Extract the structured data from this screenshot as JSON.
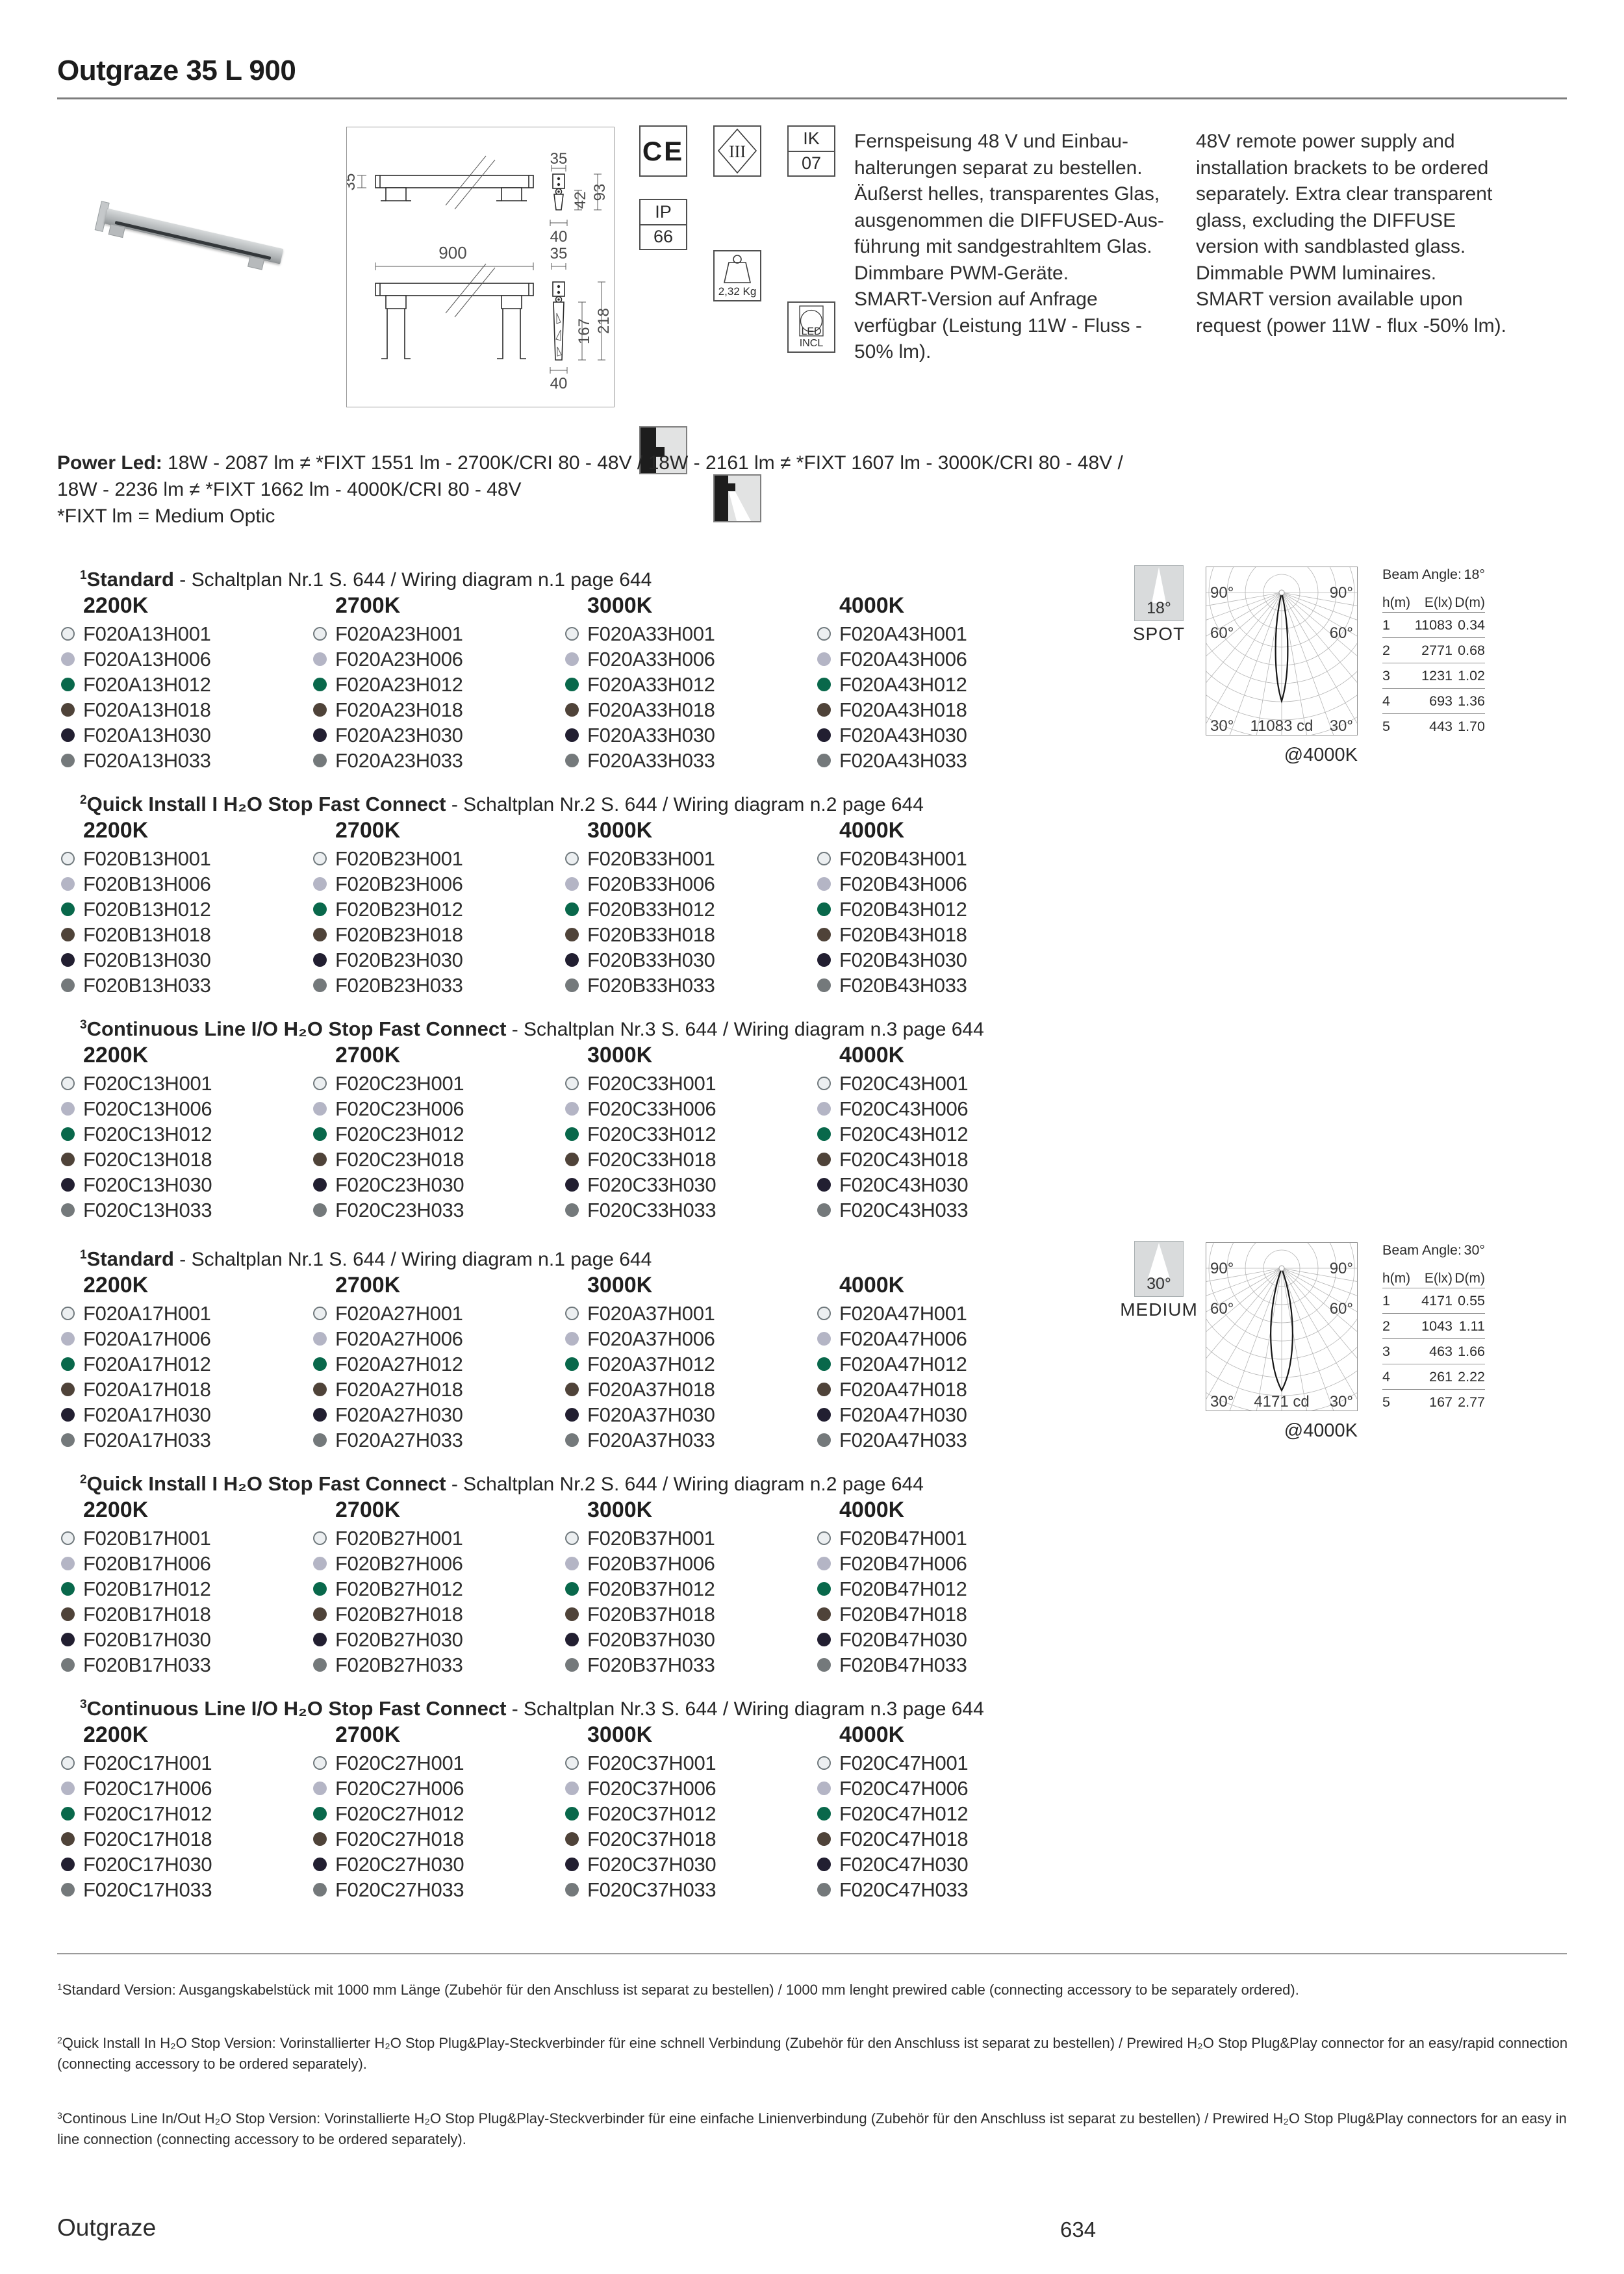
{
  "title": "Outgraze 35 L 900",
  "intro": {
    "de": [
      "Fernspeisung 48 V und Einbau-",
      "halterungen separat zu bestellen.",
      "Äußerst helles, transparentes Glas,",
      "ausgenommen die DIFFUSED-Aus-",
      "führung mit sandgestrahltem Glas.",
      "Dimmbare PWM-Geräte.",
      "SMART-Version auf Anfrage",
      "verfügbar (Leistung 11W - Fluss -",
      "50% lm)."
    ],
    "en": [
      "48V remote power supply and",
      "installation brackets to be ordered",
      "separately. Extra clear transparent",
      "glass, excluding the DIFFUSE",
      "version with sandblasted glass.",
      "Dimmable PWM luminaires.",
      "SMART version available upon",
      "request (power 11W - flux -50% lm)."
    ]
  },
  "badges": {
    "ce": "CE",
    "insulation_class": "III",
    "ik_label": "IK",
    "ik_value": "07",
    "ip_label": "IP",
    "ip_value": "66",
    "weight": "2,32 Kg",
    "led": "LED INCL"
  },
  "drawing": {
    "dims": {
      "side_height": "35",
      "end_width_top": "35",
      "bracket_height": "42",
      "total_depth_top": "93",
      "base_width_top": "40",
      "length": "900",
      "end_width_bottom": "35",
      "stem_height": "167",
      "total_height_bottom": "218",
      "base_width_bottom": "40"
    }
  },
  "power_led": {
    "label": "Power Led:",
    "line1": "18W - 2087 lm ≠ *FIXT 1551 lm - 2700K/CRI 80 - 48V    /    18W - 2161 lm ≠ *FIXT 1607 lm - 3000K/CRI 80 - 48V    /",
    "line2": "18W - 2236 lm ≠ *FIXT 1662 lm - 4000K/CRI 80 - 48V",
    "line3": "*FIXT lm = Medium Optic"
  },
  "finishes": [
    {
      "suffix": "H001",
      "color": "#eceff1",
      "border": "#6f787c"
    },
    {
      "suffix": "H006",
      "color": "#b4b5c5"
    },
    {
      "suffix": "H012",
      "color": "#09684b"
    },
    {
      "suffix": "H018",
      "color": "#4f4339"
    },
    {
      "suffix": "H030",
      "color": "#221f31"
    },
    {
      "suffix": "H033",
      "color": "#74797b"
    }
  ],
  "sections": [
    {
      "sup": "1",
      "name": "Standard",
      "rest": "- Schaltplan Nr.1 S. 644 / Wiring diagram n.1 page 644",
      "columns": [
        {
          "temp": "2200K",
          "codes": [
            "F020A13H001",
            "F020A13H006",
            "F020A13H012",
            "F020A13H018",
            "F020A13H030",
            "F020A13H033"
          ]
        },
        {
          "temp": "2700K",
          "codes": [
            "F020A23H001",
            "F020A23H006",
            "F020A23H012",
            "F020A23H018",
            "F020A23H030",
            "F020A23H033"
          ]
        },
        {
          "temp": "3000K",
          "codes": [
            "F020A33H001",
            "F020A33H006",
            "F020A33H012",
            "F020A33H018",
            "F020A33H030",
            "F020A33H033"
          ]
        },
        {
          "temp": "4000K",
          "codes": [
            "F020A43H001",
            "F020A43H006",
            "F020A43H012",
            "F020A43H018",
            "F020A43H030",
            "F020A43H033"
          ]
        }
      ]
    },
    {
      "sup": "2",
      "name": "Quick Install I H₂O Stop Fast Connect",
      "rest": "- Schaltplan Nr.2 S. 644 / Wiring diagram n.2 page 644",
      "columns": [
        {
          "temp": "2200K",
          "codes": [
            "F020B13H001",
            "F020B13H006",
            "F020B13H012",
            "F020B13H018",
            "F020B13H030",
            "F020B13H033"
          ]
        },
        {
          "temp": "2700K",
          "codes": [
            "F020B23H001",
            "F020B23H006",
            "F020B23H012",
            "F020B23H018",
            "F020B23H030",
            "F020B23H033"
          ]
        },
        {
          "temp": "3000K",
          "codes": [
            "F020B33H001",
            "F020B33H006",
            "F020B33H012",
            "F020B33H018",
            "F020B33H030",
            "F020B33H033"
          ]
        },
        {
          "temp": "4000K",
          "codes": [
            "F020B43H001",
            "F020B43H006",
            "F020B43H012",
            "F020B43H018",
            "F020B43H030",
            "F020B43H033"
          ]
        }
      ]
    },
    {
      "sup": "3",
      "name": "Continuous Line I/O H₂O Stop Fast Connect",
      "rest": "- Schaltplan Nr.3 S. 644 / Wiring diagram n.3 page 644",
      "columns": [
        {
          "temp": "2200K",
          "codes": [
            "F020C13H001",
            "F020C13H006",
            "F020C13H012",
            "F020C13H018",
            "F020C13H030",
            "F020C13H033"
          ]
        },
        {
          "temp": "2700K",
          "codes": [
            "F020C23H001",
            "F020C23H006",
            "F020C23H012",
            "F020C23H018",
            "F020C23H030",
            "F020C23H033"
          ]
        },
        {
          "temp": "3000K",
          "codes": [
            "F020C33H001",
            "F020C33H006",
            "F020C33H012",
            "F020C33H018",
            "F020C33H030",
            "F020C33H033"
          ]
        },
        {
          "temp": "4000K",
          "codes": [
            "F020C43H001",
            "F020C43H006",
            "F020C43H012",
            "F020C43H018",
            "F020C43H030",
            "F020C43H033"
          ]
        }
      ]
    },
    {
      "sup": "1",
      "name": "Standard",
      "rest": "- Schaltplan Nr.1 S. 644 / Wiring diagram n.1 page 644",
      "columns": [
        {
          "temp": "2200K",
          "codes": [
            "F020A17H001",
            "F020A17H006",
            "F020A17H012",
            "F020A17H018",
            "F020A17H030",
            "F020A17H033"
          ]
        },
        {
          "temp": "2700K",
          "codes": [
            "F020A27H001",
            "F020A27H006",
            "F020A27H012",
            "F020A27H018",
            "F020A27H030",
            "F020A27H033"
          ]
        },
        {
          "temp": "3000K",
          "codes": [
            "F020A37H001",
            "F020A37H006",
            "F020A37H012",
            "F020A37H018",
            "F020A37H030",
            "F020A37H033"
          ]
        },
        {
          "temp": "4000K",
          "codes": [
            "F020A47H001",
            "F020A47H006",
            "F020A47H012",
            "F020A47H018",
            "F020A47H030",
            "F020A47H033"
          ]
        }
      ]
    },
    {
      "sup": "2",
      "name": "Quick Install I H₂O Stop Fast Connect",
      "rest": "- Schaltplan Nr.2 S. 644 / Wiring diagram n.2 page 644",
      "columns": [
        {
          "temp": "2200K",
          "codes": [
            "F020B17H001",
            "F020B17H006",
            "F020B17H012",
            "F020B17H018",
            "F020B17H030",
            "F020B17H033"
          ]
        },
        {
          "temp": "2700K",
          "codes": [
            "F020B27H001",
            "F020B27H006",
            "F020B27H012",
            "F020B27H018",
            "F020B27H030",
            "F020B27H033"
          ]
        },
        {
          "temp": "3000K",
          "codes": [
            "F020B37H001",
            "F020B37H006",
            "F020B37H012",
            "F020B37H018",
            "F020B37H030",
            "F020B37H033"
          ]
        },
        {
          "temp": "4000K",
          "codes": [
            "F020B47H001",
            "F020B47H006",
            "F020B47H012",
            "F020B47H018",
            "F020B47H030",
            "F020B47H033"
          ]
        }
      ]
    },
    {
      "sup": "3",
      "name": "Continuous Line I/O H₂O Stop Fast Connect",
      "rest": "- Schaltplan Nr.3 S. 644 / Wiring diagram n.3 page 644",
      "columns": [
        {
          "temp": "2200K",
          "codes": [
            "F020C17H001",
            "F020C17H006",
            "F020C17H012",
            "F020C17H018",
            "F020C17H030",
            "F020C17H033"
          ]
        },
        {
          "temp": "2700K",
          "codes": [
            "F020C27H001",
            "F020C27H006",
            "F020C27H012",
            "F020C27H018",
            "F020C27H030",
            "F020C27H033"
          ]
        },
        {
          "temp": "3000K",
          "codes": [
            "F020C37H001",
            "F020C37H006",
            "F020C37H012",
            "F020C37H018",
            "F020C37H030",
            "F020C37H033"
          ]
        },
        {
          "temp": "4000K",
          "codes": [
            "F020C47H001",
            "F020C47H006",
            "F020C47H012",
            "F020C47H018",
            "F020C47H030",
            "F020C47H033"
          ]
        }
      ]
    }
  ],
  "photometrics": [
    {
      "icon_angle": "18°",
      "icon_label": "SPOT",
      "beam_label": "Beam Angle:",
      "beam_value": "18°",
      "headers": [
        "h(m)",
        "E(lx)",
        "D(m)"
      ],
      "ring_labels": [
        "90°",
        "60°",
        "30°"
      ],
      "rows": [
        [
          "1",
          "11083",
          "0.34"
        ],
        [
          "2",
          "2771",
          "0.68"
        ],
        [
          "3",
          "1231",
          "1.02"
        ],
        [
          "4",
          "693",
          "1.36"
        ],
        [
          "5",
          "443",
          "1.70"
        ]
      ],
      "cd": "11083 cd",
      "at": "@4000K"
    },
    {
      "icon_angle": "30°",
      "icon_label": "MEDIUM",
      "beam_label": "Beam Angle:",
      "beam_value": "30°",
      "headers": [
        "h(m)",
        "E(lx)",
        "D(m)"
      ],
      "ring_labels": [
        "90°",
        "60°",
        "30°"
      ],
      "rows": [
        [
          "1",
          "4171",
          "0.55"
        ],
        [
          "2",
          "1043",
          "1.11"
        ],
        [
          "3",
          "463",
          "1.66"
        ],
        [
          "4",
          "261",
          "2.22"
        ],
        [
          "5",
          "167",
          "2.77"
        ]
      ],
      "cd": "4171 cd",
      "at": "@4000K"
    }
  ],
  "footnotes": [
    {
      "sup": "1",
      "text": "Standard Version: Ausgangskabelstück mit 1000 mm Länge (Zubehör für den Anschluss ist separat zu bestellen) / 1000 mm lenght prewired cable (connecting accessory to be separately ordered)."
    },
    {
      "sup": "2",
      "text": "Quick Install In H₂O Stop Version: Vorinstallierter H₂O Stop Plug&Play-Steckverbinder für eine schnell Verbindung (Zubehör für den Anschluss ist separat zu bestellen) / Prewired H₂O Stop Plug&Play connector for an easy/rapid connection (connecting accessory to be ordered separately)."
    },
    {
      "sup": "3",
      "text": "Continous Line In/Out H₂O Stop Version: Vorinstallierte H₂O Stop Plug&Play-Steckverbinder für eine einfache Linienverbindung (Zubehör für den Anschluss ist separat zu bestellen) / Prewired H₂O Stop Plug&Play connectors for an easy in line connection (connecting accessory to be ordered separately)."
    }
  ],
  "footer": {
    "brand": "Outgraze",
    "page": "634"
  }
}
